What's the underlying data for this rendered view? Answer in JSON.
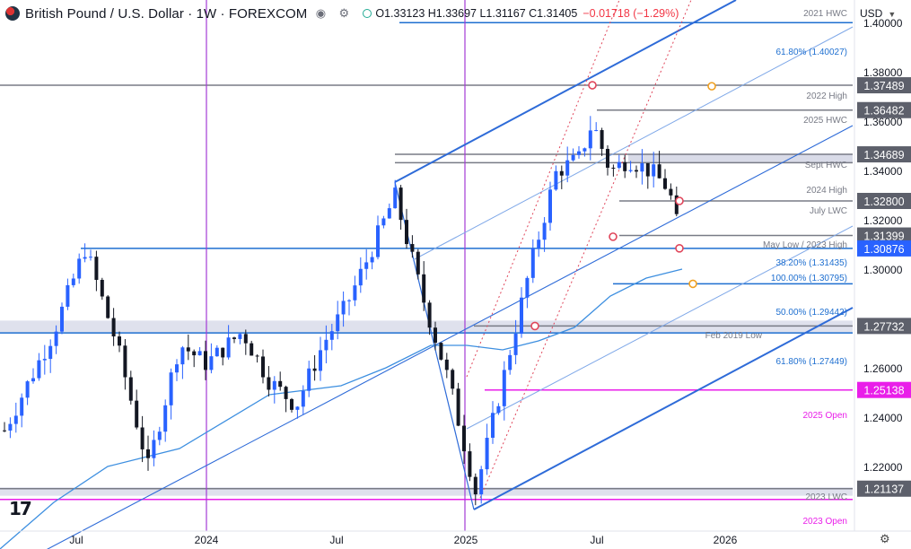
{
  "header": {
    "title": "British Pound / U.S. Dollar · 1W · FOREXCOM",
    "ohlc": "O1.33123 H1.33697 L1.31167 C1.31405",
    "change": "−0.01718 (−1.29%)",
    "currency": "USD"
  },
  "chart_data": {
    "type": "candlestick",
    "title": "British Pound / U.S. Dollar · 1W · FOREXCOM",
    "x_axis_labels": [
      "Jul",
      "2024",
      "Jul",
      "2025",
      "Jul",
      "2026"
    ],
    "y_axis_ticks": [
      "1.40000",
      "1.38000",
      "1.36000",
      "1.34000",
      "1.32000",
      "1.30000",
      "1.26000",
      "1.24000",
      "1.22000"
    ],
    "ylim": [
      1.2,
      1.42
    ],
    "price_labels": [
      {
        "value": 1.37489,
        "text": "1.37489",
        "color": "#5d606b"
      },
      {
        "value": 1.36482,
        "text": "1.36482",
        "color": "#5d606b"
      },
      {
        "value": 1.34689,
        "text": "1.34689",
        "color": "#5d606b"
      },
      {
        "value": 1.328,
        "text": "1.32800",
        "color": "#5d606b"
      },
      {
        "value": 1.31399,
        "text": "1.31399",
        "color": "#5d606b"
      },
      {
        "value": 1.30876,
        "text": "1.30876",
        "color": "#2962ff"
      },
      {
        "value": 1.27732,
        "text": "1.27732",
        "color": "#5d606b"
      },
      {
        "value": 1.25138,
        "text": "1.25138",
        "color": "#e91ee9"
      },
      {
        "value": 1.21137,
        "text": "1.21137",
        "color": "#5d606b"
      }
    ],
    "annotations": [
      {
        "text": "2021 HWC",
        "color": "#787b86"
      },
      {
        "text": "61.80% (1.40027)",
        "color": "#1e6fd0"
      },
      {
        "text": "2022 High",
        "color": "#787b86"
      },
      {
        "text": "2025 HWC",
        "color": "#787b86"
      },
      {
        "text": "Sept HWC",
        "color": "#787b86"
      },
      {
        "text": "2024 High",
        "color": "#787b86"
      },
      {
        "text": "July LWC",
        "color": "#787b86"
      },
      {
        "text": "May Low / 2023 High",
        "color": "#787b86"
      },
      {
        "text": "38.20% (1.31435)",
        "color": "#1e6fd0"
      },
      {
        "text": "100.00% (1.30795)",
        "color": "#1e6fd0"
      },
      {
        "text": "50.00% (1.29442)",
        "color": "#1e6fd0"
      },
      {
        "text": "Feb 2019 Low",
        "color": "#787b86"
      },
      {
        "text": "61.80% (1.27449)",
        "color": "#1e6fd0"
      },
      {
        "text": "2025 Open",
        "color": "#e91ee9"
      },
      {
        "text": "2023 LWC",
        "color": "#787b86"
      },
      {
        "text": "2023 Open",
        "color": "#e91ee9"
      }
    ],
    "levels": [
      {
        "value": 1.4185,
        "color": "#787b86"
      },
      {
        "value": 1.40027,
        "color": "#1e6fd0"
      },
      {
        "value": 1.37489,
        "color": "#787b86"
      },
      {
        "value": 1.36482,
        "color": "#787b86"
      },
      {
        "value": 1.34689,
        "color": "#787b86"
      },
      {
        "value": 1.328,
        "color": "#787b86"
      },
      {
        "value": 1.31399,
        "color": "#787b86"
      },
      {
        "value": 1.30876,
        "color": "#1e6fd0"
      },
      {
        "value": 1.29442,
        "color": "#1e6fd0"
      },
      {
        "value": 1.27732,
        "color": "#787b86"
      },
      {
        "value": 1.27449,
        "color": "#1e6fd0"
      },
      {
        "value": 1.25138,
        "color": "#e91ee9"
      },
      {
        "value": 1.21137,
        "color": "#787b86"
      },
      {
        "value": 1.207,
        "color": "#e91ee9"
      }
    ],
    "colors": {
      "up": "#2962ff",
      "down": "#131722",
      "channel": "#2e6bd8",
      "ma": "#3d8fe0",
      "vline": "#a33bd6"
    }
  }
}
